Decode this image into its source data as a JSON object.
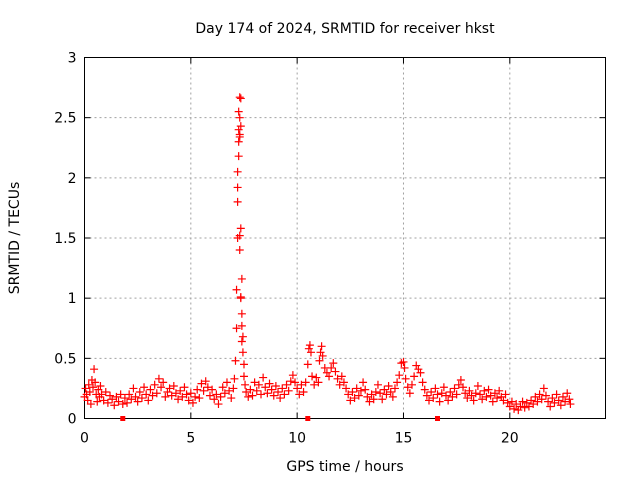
{
  "chart_data": {
    "type": "scatter",
    "title": "Day 174 of 2024, SRMTID for receiver hkst",
    "xlabel": "GPS time / hours",
    "ylabel": "SRMTID / TECUs",
    "xlim": [
      0,
      24.5
    ],
    "ylim": [
      0,
      3
    ],
    "xticks": [
      0,
      5,
      10,
      15,
      20
    ],
    "yticks": [
      0,
      0.5,
      1,
      1.5,
      2,
      2.5,
      3
    ],
    "xtick_labels": [
      "0",
      "5",
      "10",
      "15",
      "20"
    ],
    "ytick_labels": [
      "0",
      "0.5",
      "1",
      "1.5",
      "2",
      "2.5",
      "3"
    ],
    "grid": true,
    "marker": "+",
    "color": "#ff0000",
    "baseline_markers_x": [
      1.8,
      10.5,
      16.6
    ],
    "series": [
      {
        "points": [
          [
            0.0,
            0.18
          ],
          [
            0.05,
            0.25
          ],
          [
            0.1,
            0.2
          ],
          [
            0.15,
            0.15
          ],
          [
            0.2,
            0.28
          ],
          [
            0.25,
            0.22
          ],
          [
            0.3,
            0.12
          ],
          [
            0.35,
            0.32
          ],
          [
            0.4,
            0.26
          ],
          [
            0.45,
            0.41
          ],
          [
            0.5,
            0.3
          ],
          [
            0.55,
            0.2
          ],
          [
            0.6,
            0.14
          ],
          [
            0.65,
            0.24
          ],
          [
            0.7,
            0.18
          ],
          [
            0.75,
            0.27
          ],
          [
            0.8,
            0.2
          ],
          [
            0.9,
            0.15
          ],
          [
            1.0,
            0.22
          ],
          [
            1.1,
            0.13
          ],
          [
            1.2,
            0.19
          ],
          [
            1.3,
            0.16
          ],
          [
            1.4,
            0.11
          ],
          [
            1.5,
            0.18
          ],
          [
            1.6,
            0.14
          ],
          [
            1.7,
            0.2
          ],
          [
            1.8,
            0.12
          ],
          [
            1.9,
            0.17
          ],
          [
            2.0,
            0.13
          ],
          [
            2.1,
            0.2
          ],
          [
            2.2,
            0.16
          ],
          [
            2.3,
            0.25
          ],
          [
            2.4,
            0.18
          ],
          [
            2.5,
            0.14
          ],
          [
            2.6,
            0.22
          ],
          [
            2.7,
            0.17
          ],
          [
            2.8,
            0.26
          ],
          [
            2.9,
            0.2
          ],
          [
            3.0,
            0.15
          ],
          [
            3.1,
            0.24
          ],
          [
            3.2,
            0.19
          ],
          [
            3.3,
            0.28
          ],
          [
            3.4,
            0.21
          ],
          [
            3.5,
            0.33
          ],
          [
            3.6,
            0.26
          ],
          [
            3.7,
            0.3
          ],
          [
            3.8,
            0.18
          ],
          [
            3.9,
            0.22
          ],
          [
            4.0,
            0.25
          ],
          [
            4.1,
            0.19
          ],
          [
            4.2,
            0.27
          ],
          [
            4.3,
            0.21
          ],
          [
            4.4,
            0.16
          ],
          [
            4.5,
            0.23
          ],
          [
            4.6,
            0.18
          ],
          [
            4.7,
            0.26
          ],
          [
            4.8,
            0.2
          ],
          [
            4.9,
            0.15
          ],
          [
            5.0,
            0.21
          ],
          [
            5.1,
            0.13
          ],
          [
            5.2,
            0.18
          ],
          [
            5.3,
            0.24
          ],
          [
            5.4,
            0.17
          ],
          [
            5.5,
            0.29
          ],
          [
            5.6,
            0.23
          ],
          [
            5.7,
            0.31
          ],
          [
            5.8,
            0.26
          ],
          [
            5.9,
            0.19
          ],
          [
            6.0,
            0.24
          ],
          [
            6.1,
            0.16
          ],
          [
            6.2,
            0.2
          ],
          [
            6.3,
            0.12
          ],
          [
            6.4,
            0.18
          ],
          [
            6.5,
            0.26
          ],
          [
            6.6,
            0.21
          ],
          [
            6.7,
            0.3
          ],
          [
            6.8,
            0.23
          ],
          [
            6.9,
            0.17
          ],
          [
            7.0,
            0.25
          ],
          [
            7.05,
            0.33
          ],
          [
            7.1,
            0.48
          ],
          [
            7.15,
            0.75
          ],
          [
            7.15,
            1.07
          ],
          [
            7.2,
            1.5
          ],
          [
            7.2,
            1.8
          ],
          [
            7.2,
            1.92
          ],
          [
            7.2,
            2.05
          ],
          [
            7.25,
            2.18
          ],
          [
            7.25,
            2.3
          ],
          [
            7.25,
            2.4
          ],
          [
            7.25,
            2.55
          ],
          [
            7.3,
            2.67
          ],
          [
            7.3,
            2.5
          ],
          [
            7.3,
            2.36
          ],
          [
            7.35,
            2.66
          ],
          [
            7.35,
            2.43
          ],
          [
            7.3,
            2.34
          ],
          [
            7.3,
            1.52
          ],
          [
            7.35,
            1.58
          ],
          [
            7.3,
            1.4
          ],
          [
            7.35,
            1.0
          ],
          [
            7.4,
            1.16
          ],
          [
            7.35,
            1.01
          ],
          [
            7.4,
            0.87
          ],
          [
            7.4,
            0.77
          ],
          [
            7.45,
            0.68
          ],
          [
            7.4,
            0.64
          ],
          [
            7.45,
            0.55
          ],
          [
            7.5,
            0.45
          ],
          [
            7.5,
            0.35
          ],
          [
            7.55,
            0.28
          ],
          [
            7.6,
            0.22
          ],
          [
            7.7,
            0.18
          ],
          [
            7.8,
            0.24
          ],
          [
            7.9,
            0.19
          ],
          [
            8.0,
            0.3
          ],
          [
            8.1,
            0.23
          ],
          [
            8.2,
            0.28
          ],
          [
            8.3,
            0.2
          ],
          [
            8.4,
            0.34
          ],
          [
            8.5,
            0.26
          ],
          [
            8.6,
            0.21
          ],
          [
            8.7,
            0.29
          ],
          [
            8.8,
            0.24
          ],
          [
            8.9,
            0.19
          ],
          [
            9.0,
            0.27
          ],
          [
            9.1,
            0.22
          ],
          [
            9.2,
            0.17
          ],
          [
            9.3,
            0.25
          ],
          [
            9.4,
            0.2
          ],
          [
            9.5,
            0.28
          ],
          [
            9.6,
            0.23
          ],
          [
            9.7,
            0.31
          ],
          [
            9.8,
            0.36
          ],
          [
            9.9,
            0.3
          ],
          [
            10.0,
            0.25
          ],
          [
            10.1,
            0.2
          ],
          [
            10.2,
            0.28
          ],
          [
            10.3,
            0.22
          ],
          [
            10.4,
            0.3
          ],
          [
            10.5,
            0.45
          ],
          [
            10.55,
            0.58
          ],
          [
            10.6,
            0.61
          ],
          [
            10.65,
            0.55
          ],
          [
            10.7,
            0.35
          ],
          [
            10.8,
            0.28
          ],
          [
            10.9,
            0.34
          ],
          [
            11.0,
            0.3
          ],
          [
            11.05,
            0.48
          ],
          [
            11.1,
            0.55
          ],
          [
            11.15,
            0.6
          ],
          [
            11.2,
            0.52
          ],
          [
            11.3,
            0.42
          ],
          [
            11.4,
            0.38
          ],
          [
            11.5,
            0.35
          ],
          [
            11.6,
            0.42
          ],
          [
            11.7,
            0.46
          ],
          [
            11.8,
            0.39
          ],
          [
            11.9,
            0.33
          ],
          [
            12.0,
            0.28
          ],
          [
            12.1,
            0.35
          ],
          [
            12.2,
            0.3
          ],
          [
            12.3,
            0.25
          ],
          [
            12.4,
            0.2
          ],
          [
            12.5,
            0.15
          ],
          [
            12.6,
            0.22
          ],
          [
            12.7,
            0.17
          ],
          [
            12.8,
            0.25
          ],
          [
            12.9,
            0.19
          ],
          [
            13.0,
            0.23
          ],
          [
            13.1,
            0.3
          ],
          [
            13.2,
            0.24
          ],
          [
            13.3,
            0.18
          ],
          [
            13.4,
            0.14
          ],
          [
            13.5,
            0.2
          ],
          [
            13.6,
            0.16
          ],
          [
            13.7,
            0.22
          ],
          [
            13.8,
            0.28
          ],
          [
            13.9,
            0.21
          ],
          [
            14.0,
            0.16
          ],
          [
            14.1,
            0.24
          ],
          [
            14.2,
            0.2
          ],
          [
            14.3,
            0.27
          ],
          [
            14.4,
            0.22
          ],
          [
            14.5,
            0.18
          ],
          [
            14.6,
            0.25
          ],
          [
            14.7,
            0.3
          ],
          [
            14.8,
            0.36
          ],
          [
            14.9,
            0.46
          ],
          [
            15.0,
            0.47
          ],
          [
            15.05,
            0.42
          ],
          [
            15.1,
            0.33
          ],
          [
            15.2,
            0.26
          ],
          [
            15.3,
            0.21
          ],
          [
            15.4,
            0.28
          ],
          [
            15.5,
            0.35
          ],
          [
            15.6,
            0.44
          ],
          [
            15.7,
            0.41
          ],
          [
            15.8,
            0.38
          ],
          [
            15.9,
            0.3
          ],
          [
            16.0,
            0.24
          ],
          [
            16.1,
            0.19
          ],
          [
            16.2,
            0.15
          ],
          [
            16.3,
            0.22
          ],
          [
            16.4,
            0.17
          ],
          [
            16.5,
            0.25
          ],
          [
            16.6,
            0.2
          ],
          [
            16.7,
            0.14
          ],
          [
            16.8,
            0.21
          ],
          [
            16.9,
            0.26
          ],
          [
            17.0,
            0.19
          ],
          [
            17.1,
            0.15
          ],
          [
            17.2,
            0.22
          ],
          [
            17.3,
            0.18
          ],
          [
            17.4,
            0.25
          ],
          [
            17.5,
            0.2
          ],
          [
            17.6,
            0.28
          ],
          [
            17.7,
            0.32
          ],
          [
            17.8,
            0.26
          ],
          [
            17.9,
            0.21
          ],
          [
            18.0,
            0.17
          ],
          [
            18.1,
            0.23
          ],
          [
            18.2,
            0.19
          ],
          [
            18.3,
            0.15
          ],
          [
            18.4,
            0.21
          ],
          [
            18.5,
            0.27
          ],
          [
            18.6,
            0.2
          ],
          [
            18.7,
            0.16
          ],
          [
            18.8,
            0.23
          ],
          [
            18.9,
            0.18
          ],
          [
            19.0,
            0.24
          ],
          [
            19.1,
            0.19
          ],
          [
            19.2,
            0.14
          ],
          [
            19.3,
            0.21
          ],
          [
            19.4,
            0.17
          ],
          [
            19.5,
            0.23
          ],
          [
            19.6,
            0.18
          ],
          [
            19.7,
            0.15
          ],
          [
            19.8,
            0.2
          ],
          [
            19.9,
            0.13
          ],
          [
            20.0,
            0.1
          ],
          [
            20.1,
            0.14
          ],
          [
            20.2,
            0.08
          ],
          [
            20.3,
            0.12
          ],
          [
            20.4,
            0.07
          ],
          [
            20.5,
            0.1
          ],
          [
            20.6,
            0.14
          ],
          [
            20.7,
            0.09
          ],
          [
            20.8,
            0.13
          ],
          [
            20.9,
            0.1
          ],
          [
            21.0,
            0.15
          ],
          [
            21.1,
            0.12
          ],
          [
            21.2,
            0.18
          ],
          [
            21.3,
            0.14
          ],
          [
            21.4,
            0.2
          ],
          [
            21.5,
            0.16
          ],
          [
            21.6,
            0.25
          ],
          [
            21.7,
            0.19
          ],
          [
            21.8,
            0.14
          ],
          [
            21.9,
            0.1
          ],
          [
            22.0,
            0.17
          ],
          [
            22.1,
            0.13
          ],
          [
            22.2,
            0.2
          ],
          [
            22.3,
            0.15
          ],
          [
            22.4,
            0.11
          ],
          [
            22.5,
            0.18
          ],
          [
            22.6,
            0.14
          ],
          [
            22.7,
            0.21
          ],
          [
            22.8,
            0.16
          ],
          [
            22.85,
            0.12
          ]
        ]
      }
    ]
  }
}
